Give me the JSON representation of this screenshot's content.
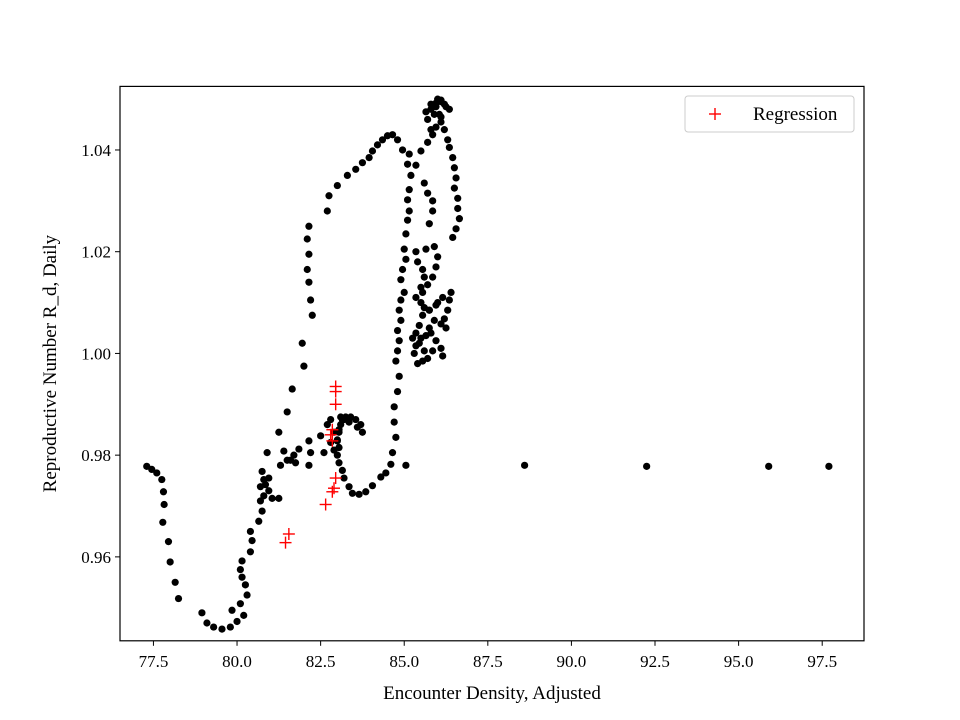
{
  "chart_data": {
    "type": "scatter",
    "title": "",
    "xlabel": "Encounter Density, Adjusted",
    "ylabel": "Reproductive Number R_d, Daily",
    "xlim": [
      76.5,
      98.75
    ],
    "ylim": [
      0.9435,
      1.0525
    ],
    "xticks": [
      77.5,
      80.0,
      82.5,
      85.0,
      87.5,
      90.0,
      92.5,
      95.0,
      97.5
    ],
    "yticks": [
      0.96,
      0.98,
      1.0,
      1.02,
      1.04
    ],
    "xtick_labels": [
      "77.5",
      "80.0",
      "82.5",
      "85.0",
      "87.5",
      "90.0",
      "92.5",
      "95.0",
      "97.5"
    ],
    "ytick_labels": [
      "0.96",
      "0.98",
      "1.00",
      "1.02",
      "1.04"
    ],
    "grid": false,
    "legend": {
      "location": "top-right",
      "entries": [
        "Regression"
      ]
    },
    "series": [
      {
        "marker": "dot",
        "color": "#000000",
        "points": [
          [
            77.3,
            0.9778
          ],
          [
            77.45,
            0.9772
          ],
          [
            77.6,
            0.9765
          ],
          [
            77.75,
            0.9752
          ],
          [
            77.8,
            0.9728
          ],
          [
            77.82,
            0.9703
          ],
          [
            77.78,
            0.9668
          ],
          [
            77.95,
            0.963
          ],
          [
            78.0,
            0.959
          ],
          [
            78.15,
            0.955
          ],
          [
            78.25,
            0.9518
          ],
          [
            78.95,
            0.949
          ],
          [
            79.1,
            0.947
          ],
          [
            79.3,
            0.9462
          ],
          [
            79.55,
            0.9458
          ],
          [
            79.8,
            0.9462
          ],
          [
            80.0,
            0.9473
          ],
          [
            80.2,
            0.9485
          ],
          [
            79.85,
            0.9495
          ],
          [
            80.1,
            0.9508
          ],
          [
            80.3,
            0.9525
          ],
          [
            80.25,
            0.9545
          ],
          [
            80.15,
            0.956
          ],
          [
            80.1,
            0.9575
          ],
          [
            80.15,
            0.9592
          ],
          [
            80.4,
            0.961
          ],
          [
            80.45,
            0.9632
          ],
          [
            80.4,
            0.965
          ],
          [
            80.65,
            0.967
          ],
          [
            80.75,
            0.969
          ],
          [
            80.7,
            0.971
          ],
          [
            80.8,
            0.972
          ],
          [
            80.7,
            0.9738
          ],
          [
            80.85,
            0.9742
          ],
          [
            80.95,
            0.973
          ],
          [
            81.05,
            0.9715
          ],
          [
            81.25,
            0.9715
          ],
          [
            80.95,
            0.9755
          ],
          [
            80.75,
            0.9768
          ],
          [
            80.8,
            0.9752
          ],
          [
            80.9,
            0.9805
          ],
          [
            81.3,
            0.978
          ],
          [
            81.5,
            0.979
          ],
          [
            81.4,
            0.9808
          ],
          [
            81.7,
            0.98
          ],
          [
            81.6,
            0.979
          ],
          [
            81.75,
            0.9785
          ],
          [
            81.85,
            0.9812
          ],
          [
            81.25,
            0.9845
          ],
          [
            81.5,
            0.9885
          ],
          [
            81.65,
            0.993
          ],
          [
            82.15,
            0.978
          ],
          [
            82.2,
            0.9805
          ],
          [
            82.15,
            0.9828
          ],
          [
            82.5,
            0.9838
          ],
          [
            82.7,
            0.986
          ],
          [
            82.8,
            0.987
          ],
          [
            82.6,
            0.9805
          ],
          [
            82.8,
            0.9825
          ],
          [
            82.9,
            0.9845
          ],
          [
            82.9,
            0.981
          ],
          [
            82.0,
            0.9975
          ],
          [
            81.95,
            1.002
          ],
          [
            82.25,
            1.0075
          ],
          [
            82.2,
            1.0105
          ],
          [
            82.15,
            1.014
          ],
          [
            82.1,
            1.0165
          ],
          [
            82.15,
            1.0195
          ],
          [
            82.1,
            1.0225
          ],
          [
            82.15,
            1.025
          ],
          [
            82.7,
            1.028
          ],
          [
            82.75,
            1.031
          ],
          [
            83.0,
            1.033
          ],
          [
            83.3,
            1.035
          ],
          [
            83.55,
            1.0362
          ],
          [
            83.75,
            1.0375
          ],
          [
            83.95,
            1.0385
          ],
          [
            84.05,
            1.0398
          ],
          [
            84.2,
            1.041
          ],
          [
            84.35,
            1.042
          ],
          [
            84.5,
            1.0428
          ],
          [
            84.65,
            1.043
          ],
          [
            84.8,
            1.042
          ],
          [
            84.95,
            1.04
          ],
          [
            85.15,
            1.0392
          ],
          [
            85.1,
            1.0372
          ],
          [
            85.2,
            1.035
          ],
          [
            85.15,
            1.0322
          ],
          [
            85.1,
            1.0302
          ],
          [
            85.15,
            1.028
          ],
          [
            85.1,
            1.0262
          ],
          [
            85.05,
            1.0235
          ],
          [
            85.0,
            1.0205
          ],
          [
            85.05,
            1.0185
          ],
          [
            84.95,
            1.0165
          ],
          [
            84.9,
            1.0145
          ],
          [
            85.0,
            1.012
          ],
          [
            84.9,
            1.0105
          ],
          [
            84.85,
            1.0085
          ],
          [
            84.9,
            1.0065
          ],
          [
            84.8,
            1.0045
          ],
          [
            84.85,
            1.0025
          ],
          [
            84.8,
            1.0005
          ],
          [
            84.75,
            0.9985
          ],
          [
            84.85,
            0.9955
          ],
          [
            84.8,
            0.9925
          ],
          [
            84.7,
            0.9895
          ],
          [
            84.7,
            0.9865
          ],
          [
            84.75,
            0.9835
          ],
          [
            84.65,
            0.9805
          ],
          [
            84.6,
            0.9782
          ],
          [
            84.45,
            0.9765
          ],
          [
            84.3,
            0.9757
          ],
          [
            84.05,
            0.974
          ],
          [
            83.85,
            0.9728
          ],
          [
            83.65,
            0.9723
          ],
          [
            83.45,
            0.9725
          ],
          [
            83.35,
            0.9738
          ],
          [
            83.2,
            0.9755
          ],
          [
            83.15,
            0.977
          ],
          [
            83.05,
            0.9785
          ],
          [
            83.0,
            0.98
          ],
          [
            83.05,
            0.9815
          ],
          [
            83.0,
            0.983
          ],
          [
            83.05,
            0.9845
          ],
          [
            83.1,
            0.986
          ],
          [
            83.15,
            0.987
          ],
          [
            83.25,
            0.9875
          ],
          [
            83.4,
            0.9875
          ],
          [
            83.55,
            0.987
          ],
          [
            83.7,
            0.986
          ],
          [
            83.75,
            0.9845
          ],
          [
            83.6,
            0.9855
          ],
          [
            83.35,
            0.9865
          ],
          [
            83.2,
            0.987
          ],
          [
            83.1,
            0.9875
          ],
          [
            83.05,
            0.985
          ],
          [
            83.0,
            0.9828
          ],
          [
            85.05,
            0.978
          ],
          [
            88.6,
            0.978
          ],
          [
            92.25,
            0.9778
          ],
          [
            95.9,
            0.9778
          ],
          [
            97.7,
            0.9778
          ],
          [
            85.4,
            0.998
          ],
          [
            85.55,
            0.9985
          ],
          [
            85.7,
            0.999
          ],
          [
            85.6,
            1.0005
          ],
          [
            85.45,
            1.002
          ],
          [
            85.35,
            1.0015
          ],
          [
            85.3,
            1.0
          ],
          [
            85.5,
            1.003
          ],
          [
            85.8,
            1.004
          ],
          [
            85.95,
            1.0025
          ],
          [
            86.1,
            1.001
          ],
          [
            86.15,
            0.9995
          ],
          [
            85.85,
            1.0005
          ],
          [
            85.65,
            1.0035
          ],
          [
            85.75,
            1.005
          ],
          [
            85.9,
            1.0065
          ],
          [
            86.1,
            1.0058
          ],
          [
            86.25,
            1.005
          ],
          [
            86.2,
            1.0068
          ],
          [
            86.3,
            1.0085
          ],
          [
            86.35,
            1.0105
          ],
          [
            86.4,
            1.012
          ],
          [
            86.15,
            1.011
          ],
          [
            85.95,
            1.0095
          ],
          [
            85.75,
            1.0085
          ],
          [
            85.55,
            1.0075
          ],
          [
            85.45,
            1.0055
          ],
          [
            85.35,
            1.004
          ],
          [
            85.25,
            1.003
          ],
          [
            85.35,
            1.011
          ],
          [
            85.5,
            1.013
          ],
          [
            85.6,
            1.015
          ],
          [
            85.55,
            1.0165
          ],
          [
            85.4,
            1.018
          ],
          [
            85.35,
            1.02
          ],
          [
            85.65,
            1.0205
          ],
          [
            85.9,
            1.021
          ],
          [
            86.0,
            1.019
          ],
          [
            85.95,
            1.017
          ],
          [
            85.85,
            1.015
          ],
          [
            85.7,
            1.0135
          ],
          [
            85.55,
            1.012
          ],
          [
            85.5,
            1.01
          ],
          [
            85.6,
            1.009
          ],
          [
            85.75,
            1.0085
          ],
          [
            86.0,
            1.01
          ],
          [
            85.75,
            1.0255
          ],
          [
            85.85,
            1.028
          ],
          [
            85.85,
            1.03
          ],
          [
            85.7,
            1.0315
          ],
          [
            85.6,
            1.0335
          ],
          [
            85.35,
            1.037
          ],
          [
            85.5,
            1.0398
          ],
          [
            85.7,
            1.0415
          ],
          [
            85.85,
            1.043
          ],
          [
            85.95,
            1.0445
          ],
          [
            86.1,
            1.0455
          ],
          [
            86.2,
            1.044
          ],
          [
            86.3,
            1.042
          ],
          [
            86.35,
            1.0405
          ],
          [
            86.45,
            1.0385
          ],
          [
            86.5,
            1.0365
          ],
          [
            86.55,
            1.0345
          ],
          [
            86.5,
            1.0325
          ],
          [
            86.6,
            1.0305
          ],
          [
            86.6,
            1.0285
          ],
          [
            86.65,
            1.0265
          ],
          [
            86.55,
            1.0245
          ],
          [
            86.45,
            1.0228
          ],
          [
            85.8,
            1.044
          ],
          [
            85.7,
            1.046
          ],
          [
            85.8,
            1.048
          ],
          [
            85.95,
            1.0492
          ],
          [
            86.1,
            1.0495
          ],
          [
            86.25,
            1.0485
          ],
          [
            86.1,
            1.0465
          ],
          [
            85.9,
            1.047
          ],
          [
            85.65,
            1.0475
          ],
          [
            85.8,
            1.049
          ],
          [
            86.0,
            1.05
          ],
          [
            86.2,
            1.049
          ],
          [
            86.35,
            1.048
          ],
          [
            86.1,
            1.0498
          ],
          [
            85.95,
            1.0485
          ],
          [
            86.05,
            1.047
          ]
        ]
      },
      {
        "name": "Regression",
        "marker": "plus",
        "color": "#ff0000",
        "points": [
          [
            81.45,
            0.9628
          ],
          [
            81.55,
            0.9645
          ],
          [
            82.65,
            0.9703
          ],
          [
            82.85,
            0.9728
          ],
          [
            82.9,
            0.9735
          ],
          [
            82.95,
            0.9755
          ],
          [
            82.8,
            0.984
          ],
          [
            82.85,
            0.985
          ],
          [
            82.85,
            0.9828
          ],
          [
            82.95,
            0.99
          ],
          [
            82.95,
            0.9925
          ],
          [
            82.95,
            0.9935
          ]
        ]
      }
    ]
  }
}
